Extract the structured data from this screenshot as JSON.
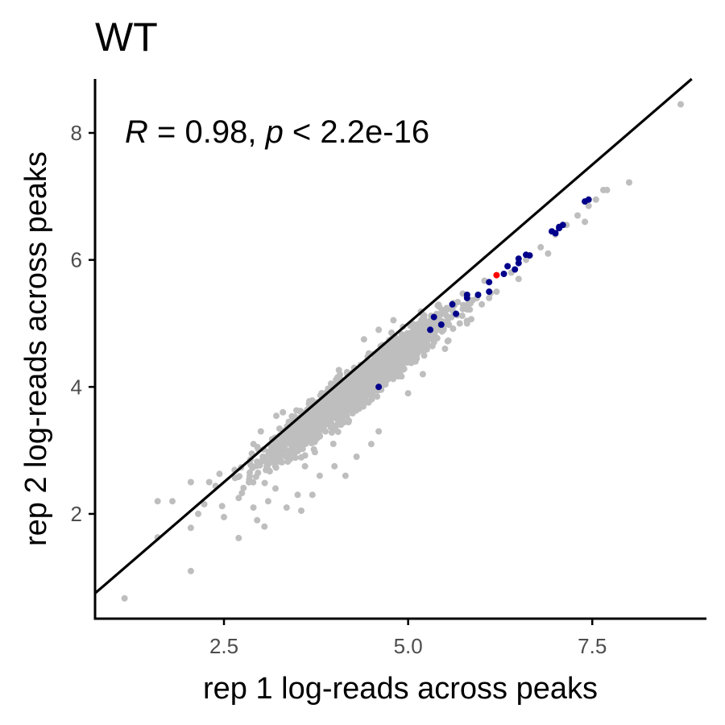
{
  "chart_data": {
    "type": "scatter",
    "title": "WT",
    "xlabel": "rep 1 log-reads across peaks",
    "ylabel": "rep 2 log-reads across peaks",
    "xlim": [
      0.75,
      9.05
    ],
    "ylim": [
      0.35,
      8.85
    ],
    "x_ticks": [
      2.5,
      5.0,
      7.5
    ],
    "x_tick_labels": [
      "2.5",
      "5.0",
      "7.5"
    ],
    "y_ticks": [
      2,
      4,
      6,
      8
    ],
    "y_tick_labels": [
      "2",
      "4",
      "6",
      "8"
    ],
    "grid": false,
    "annotation": {
      "r_symbol": "R",
      "r_text": " = 0.98, ",
      "p_symbol": "p",
      "p_text": " < 2.2e-16"
    },
    "reference_line": {
      "type": "identity",
      "slope": 1,
      "intercept": 0,
      "color": "#000000"
    },
    "colors": {
      "background": "#bebebe",
      "highlight": "#00008b",
      "focus": "#ff0000"
    },
    "series": [
      {
        "role": "background",
        "color": "#bebebe",
        "cloud": {
          "n": 2200,
          "x_center": 4.3,
          "x_sd": 0.55,
          "slope": 0.9,
          "intercept": 0.12,
          "resid_sd": 0.15
        },
        "points": [
          [
            1.15,
            0.67
          ],
          [
            1.6,
            1.63
          ],
          [
            1.6,
            2.2
          ],
          [
            1.8,
            2.2
          ],
          [
            2.05,
            1.1
          ],
          [
            2.05,
            1.78
          ],
          [
            2.05,
            2.5
          ],
          [
            2.15,
            2.0
          ],
          [
            2.3,
            2.5
          ],
          [
            2.5,
            1.95
          ],
          [
            2.7,
            1.62
          ],
          [
            2.7,
            2.25
          ],
          [
            2.85,
            2.65
          ],
          [
            2.9,
            2.1
          ],
          [
            2.95,
            1.9
          ],
          [
            3.05,
            1.8
          ],
          [
            3.1,
            2.2
          ],
          [
            3.2,
            2.4
          ],
          [
            3.35,
            2.1
          ],
          [
            3.5,
            2.3
          ],
          [
            3.55,
            2.05
          ],
          [
            3.7,
            2.3
          ],
          [
            3.8,
            2.6
          ],
          [
            4.0,
            2.75
          ],
          [
            4.15,
            2.6
          ],
          [
            3.1,
            2.7
          ],
          [
            3.2,
            3.0
          ],
          [
            4.5,
            3.1
          ],
          [
            4.6,
            3.3
          ],
          [
            4.3,
            2.9
          ],
          [
            3.6,
            2.75
          ],
          [
            2.9,
            3.1
          ],
          [
            3.0,
            3.3
          ],
          [
            3.3,
            3.6
          ],
          [
            5.0,
            3.9
          ],
          [
            5.2,
            4.2
          ],
          [
            5.1,
            4.4
          ],
          [
            5.5,
            4.6
          ],
          [
            5.8,
            5.0
          ],
          [
            6.0,
            5.3
          ],
          [
            6.2,
            5.5
          ],
          [
            6.4,
            5.8
          ],
          [
            6.6,
            6.0
          ],
          [
            6.8,
            6.2
          ],
          [
            7.0,
            6.4
          ],
          [
            7.15,
            6.55
          ],
          [
            7.3,
            6.7
          ],
          [
            7.45,
            6.85
          ],
          [
            7.55,
            6.95
          ],
          [
            7.65,
            7.1
          ],
          [
            7.7,
            7.1
          ],
          [
            7.4,
            6.6
          ],
          [
            6.9,
            6.1
          ],
          [
            6.5,
            5.7
          ],
          [
            6.1,
            5.4
          ],
          [
            5.7,
            5.0
          ],
          [
            5.35,
            4.7
          ],
          [
            8.0,
            7.22
          ],
          [
            8.7,
            8.45
          ],
          [
            4.4,
            4.75
          ],
          [
            4.6,
            4.9
          ],
          [
            4.8,
            5.05
          ]
        ]
      },
      {
        "role": "highlight",
        "color": "#00008b",
        "points": [
          [
            4.6,
            4.0
          ],
          [
            5.3,
            4.9
          ],
          [
            5.35,
            5.1
          ],
          [
            5.45,
            4.98
          ],
          [
            5.6,
            5.3
          ],
          [
            5.65,
            5.15
          ],
          [
            5.8,
            5.4
          ],
          [
            5.8,
            5.45
          ],
          [
            5.95,
            5.45
          ],
          [
            6.1,
            5.5
          ],
          [
            6.1,
            5.65
          ],
          [
            6.3,
            5.78
          ],
          [
            6.35,
            5.9
          ],
          [
            6.45,
            5.85
          ],
          [
            6.5,
            6.02
          ],
          [
            6.5,
            5.95
          ],
          [
            6.6,
            6.08
          ],
          [
            6.65,
            6.07
          ],
          [
            6.95,
            6.45
          ],
          [
            7.0,
            6.42
          ],
          [
            7.05,
            6.52
          ],
          [
            7.1,
            6.55
          ],
          [
            7.05,
            6.5
          ],
          [
            7.4,
            6.92
          ],
          [
            7.45,
            6.95
          ]
        ]
      },
      {
        "role": "focus",
        "color": "#ff0000",
        "points": [
          [
            6.2,
            5.76
          ]
        ]
      }
    ]
  }
}
